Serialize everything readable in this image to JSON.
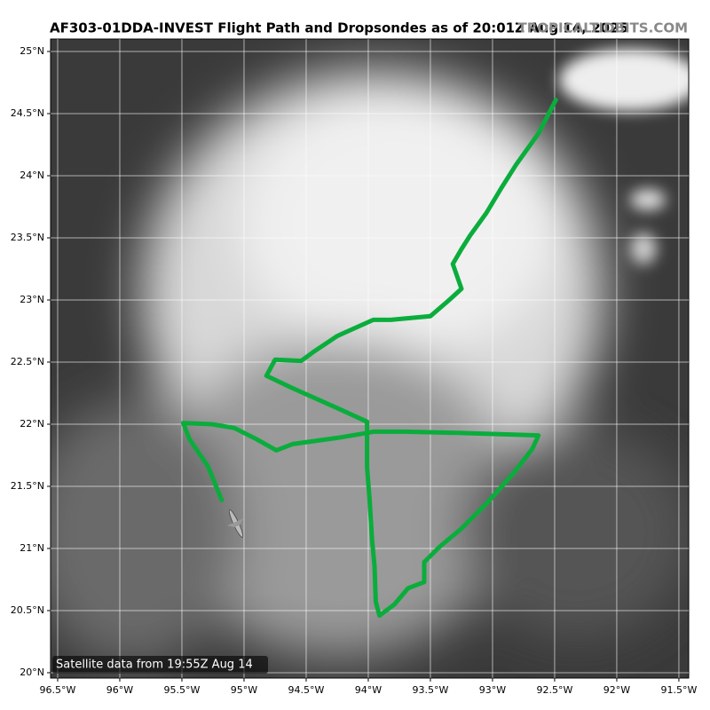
{
  "chart_data": {
    "type": "line",
    "title": "AF303-01DDA-INVEST Flight Path and Dropsondes as of 20:01Z Aug 14, 2025",
    "watermark": "TROPICALTIDBITS.COM",
    "annotation": "Satellite data from 19:55Z Aug 14",
    "color": "#0aad3c",
    "grid": true,
    "xlim": [
      -96.557,
      -91.421
    ],
    "ylim": [
      19.957,
      25.1
    ],
    "xticks": [
      {
        "value": -96.5,
        "label": "96.5°W"
      },
      {
        "value": -96,
        "label": "96°W"
      },
      {
        "value": -95.5,
        "label": "95.5°W"
      },
      {
        "value": -95,
        "label": "95°W"
      },
      {
        "value": -94.5,
        "label": "94.5°W"
      },
      {
        "value": -94,
        "label": "94°W"
      },
      {
        "value": -93.5,
        "label": "93.5°W"
      },
      {
        "value": -93,
        "label": "93°W"
      },
      {
        "value": -92.5,
        "label": "92.5°W"
      },
      {
        "value": -92,
        "label": "92°W"
      },
      {
        "value": -91.5,
        "label": "91.5°W"
      }
    ],
    "yticks": [
      {
        "value": 20,
        "label": "20°N"
      },
      {
        "value": 20.5,
        "label": "20.5°N"
      },
      {
        "value": 21,
        "label": "21°N"
      },
      {
        "value": 21.5,
        "label": "21.5°N"
      },
      {
        "value": 22,
        "label": "22°N"
      },
      {
        "value": 22.5,
        "label": "22.5°N"
      },
      {
        "value": 23,
        "label": "23°N"
      },
      {
        "value": 23.5,
        "label": "23.5°N"
      },
      {
        "value": 24,
        "label": "24°N"
      },
      {
        "value": 24.5,
        "label": "24.5°N"
      },
      {
        "value": 25,
        "label": "25°N"
      }
    ],
    "x": [
      -92.49,
      -92.63,
      -92.81,
      -92.93,
      -93.05,
      -93.18,
      -93.25,
      -93.32,
      -93.25,
      -93.36,
      -93.5,
      -93.82,
      -93.96,
      -94.25,
      -94.43,
      -94.54,
      -94.75,
      -94.82,
      -94.61,
      -94.25,
      -94.01,
      -94.01,
      -93.99,
      -93.97,
      -93.95,
      -93.94,
      -93.91,
      -93.79,
      -93.68,
      -93.55,
      -93.55,
      -93.43,
      -93.25,
      -93.04,
      -92.82,
      -92.68,
      -92.63,
      -93.28,
      -93.71,
      -93.96,
      -94.01,
      -94.25,
      -94.61,
      -94.74,
      -94.9,
      -95.08,
      -95.26,
      -95.49,
      -95.44,
      -95.29,
      -95.18
    ],
    "values": [
      24.61,
      24.34,
      24.09,
      23.9,
      23.7,
      23.52,
      23.41,
      23.29,
      23.09,
      22.99,
      22.87,
      22.84,
      22.84,
      22.71,
      22.59,
      22.51,
      22.52,
      22.39,
      22.29,
      22.13,
      22.02,
      21.65,
      21.4,
      21.07,
      20.86,
      20.57,
      20.46,
      20.55,
      20.68,
      20.73,
      20.89,
      21.01,
      21.16,
      21.37,
      21.62,
      21.8,
      21.91,
      21.93,
      21.94,
      21.94,
      21.93,
      21.89,
      21.84,
      21.79,
      21.88,
      21.97,
      22.0,
      22.01,
      21.88,
      21.66,
      21.39
    ]
  }
}
